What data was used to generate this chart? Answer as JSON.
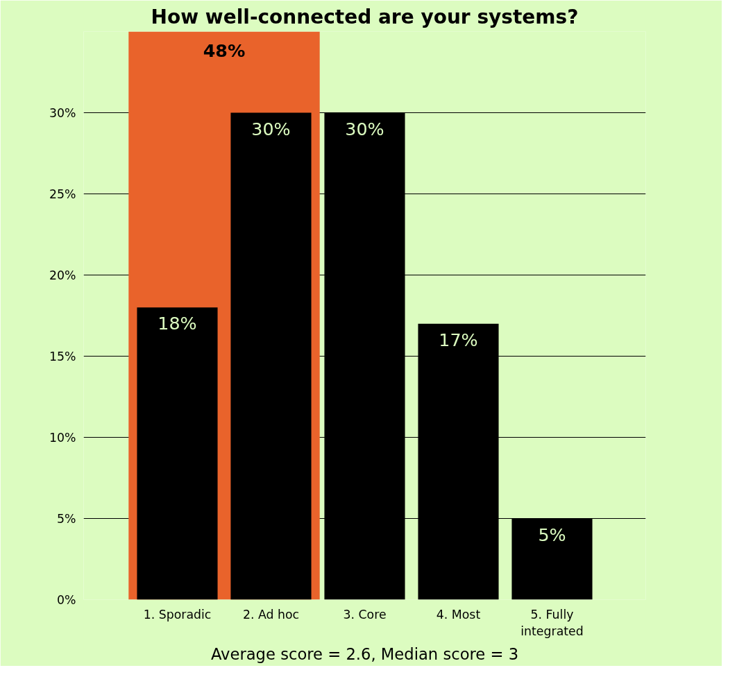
{
  "chart_data": {
    "type": "bar",
    "title": "How well-connected are your systems?",
    "categories": [
      "1. Sporadic",
      "2. Ad hoc",
      "3. Core",
      "4. Most",
      "5. Fully\nintegrated"
    ],
    "values": [
      18,
      30,
      30,
      17,
      5
    ],
    "color": "#000000",
    "value_labels": [
      "18%",
      "30%",
      "30%",
      "17%",
      "5%"
    ],
    "ylim": [
      0,
      35
    ],
    "yticks": [
      {
        "value": 0,
        "label": "0%"
      },
      {
        "value": 5,
        "label": "5%"
      },
      {
        "value": 10,
        "label": "10%"
      },
      {
        "value": 15,
        "label": "15%"
      },
      {
        "value": 20,
        "label": "20%"
      },
      {
        "value": 25,
        "label": "25%"
      },
      {
        "value": 30,
        "label": "30%"
      }
    ],
    "grid": "y",
    "bands": [
      {
        "axis": "x",
        "from": "1. Sporadic",
        "to": "2. Ad hoc",
        "label": "48%",
        "color": "#e9632b"
      }
    ],
    "annotations": [
      "Average score = 2.6, Median score = 3"
    ]
  }
}
